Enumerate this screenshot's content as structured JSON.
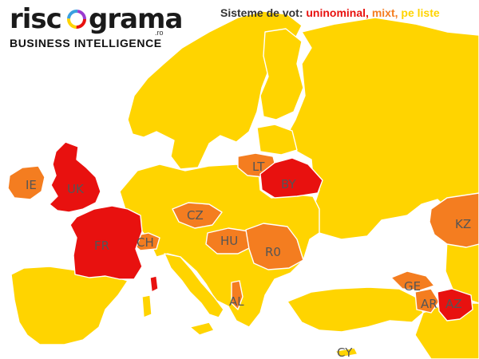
{
  "logo": {
    "word_left": "risc",
    "word_right": "grama",
    "domain_suffix": ".ro",
    "tagline": "BUSINESS INTELLIGENCE"
  },
  "legend": {
    "prefix": "Sisteme de vot:",
    "items": [
      {
        "label": "uninominal",
        "color": "#e8110f"
      },
      {
        "label": "mixt",
        "color": "#f47d20"
      },
      {
        "label": "pe liste",
        "color": "#ffd400"
      }
    ],
    "separator": ","
  },
  "colors": {
    "uninominal": "#e8110f",
    "mixt": "#f47d20",
    "pe_liste": "#ffd400",
    "background": "#ffffff",
    "border": "#ffffff"
  },
  "countries": [
    {
      "code": "UK",
      "system": "uninominal"
    },
    {
      "code": "FR",
      "system": "uninominal"
    },
    {
      "code": "BY",
      "system": "uninominal"
    },
    {
      "code": "AZ",
      "system": "uninominal"
    },
    {
      "code": "IE",
      "system": "mixt"
    },
    {
      "code": "CH",
      "system": "mixt"
    },
    {
      "code": "CZ",
      "system": "mixt"
    },
    {
      "code": "HU",
      "system": "mixt"
    },
    {
      "code": "RO",
      "system": "mixt"
    },
    {
      "code": "LT",
      "system": "mixt"
    },
    {
      "code": "KZ",
      "system": "mixt"
    },
    {
      "code": "GE",
      "system": "mixt"
    },
    {
      "code": "AR",
      "system": "mixt"
    },
    {
      "code": "AL",
      "system": "mixt"
    },
    {
      "code": "CY",
      "system": "pe_liste"
    }
  ],
  "labels": {
    "IE": "IE",
    "UK": "UK",
    "FR": "FR",
    "CH": "CH",
    "CZ": "CZ",
    "HU": "HU",
    "RO": "R0",
    "LT": "LT",
    "BY": "BY",
    "KZ": "KZ",
    "GE": "GE",
    "AR": "AR",
    "AZ": "AZ",
    "AL": "AL",
    "CY": "CY"
  }
}
